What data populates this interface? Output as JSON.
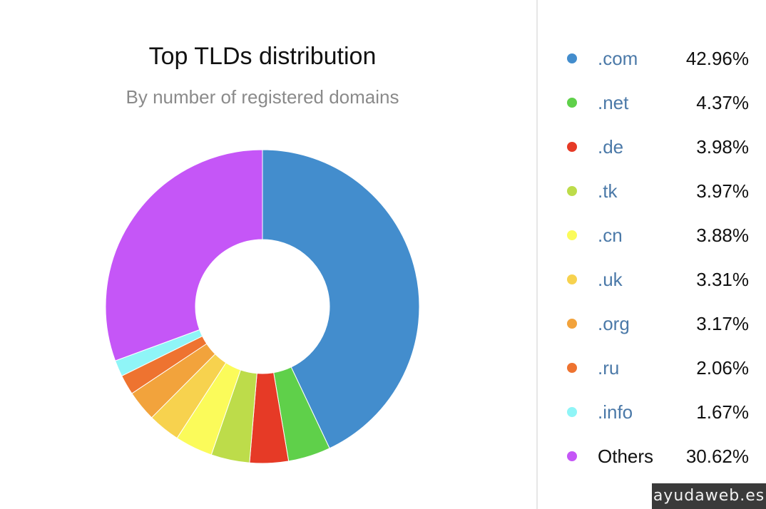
{
  "chart_data": {
    "type": "pie",
    "donut": true,
    "title": "Top TLDs distribution",
    "subtitle": "By number of registered domains",
    "legend_position": "right",
    "slices": [
      {
        "label": ".com",
        "value": 42.96,
        "value_text": "42.96%",
        "color": "#438dcd",
        "label_color": "#4b79a8"
      },
      {
        "label": ".net",
        "value": 4.37,
        "value_text": "4.37%",
        "color": "#5fd04a",
        "label_color": "#4b79a8"
      },
      {
        "label": ".de",
        "value": 3.98,
        "value_text": "3.98%",
        "color": "#e63a26",
        "label_color": "#4b79a8"
      },
      {
        "label": ".tk",
        "value": 3.97,
        "value_text": "3.97%",
        "color": "#bddc4a",
        "label_color": "#4b79a8"
      },
      {
        "label": ".cn",
        "value": 3.88,
        "value_text": "3.88%",
        "color": "#fbfb5a",
        "label_color": "#4b79a8"
      },
      {
        "label": ".uk",
        "value": 3.31,
        "value_text": "3.31%",
        "color": "#f7d24e",
        "label_color": "#4b79a8"
      },
      {
        "label": ".org",
        "value": 3.17,
        "value_text": "3.17%",
        "color": "#f2a33c",
        "label_color": "#4b79a8"
      },
      {
        "label": ".ru",
        "value": 2.06,
        "value_text": "2.06%",
        "color": "#ee7330",
        "label_color": "#4b79a8"
      },
      {
        "label": ".info",
        "value": 1.67,
        "value_text": "1.67%",
        "color": "#8ff5f7",
        "label_color": "#4b79a8"
      },
      {
        "label": "Others",
        "value": 30.62,
        "value_text": "30.62%",
        "color": "#c556f7",
        "label_color": "#111111"
      }
    ]
  },
  "watermark": "ayudaweb.es"
}
